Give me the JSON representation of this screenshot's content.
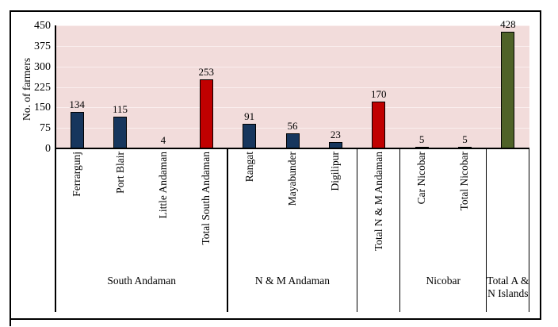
{
  "colors": {
    "navy": "#17365D",
    "red": "#C00000",
    "olive": "#4F6228",
    "plot_bg": "#F2DCDB",
    "gridline": "#FAEEEE",
    "axis": "#000000"
  },
  "chart_data": {
    "type": "bar",
    "title": "",
    "xlabel": "",
    "ylabel": "No. of farmers",
    "ylim": [
      0,
      450
    ],
    "yticks": [
      0,
      75,
      150,
      225,
      300,
      375,
      450
    ],
    "grid": "on",
    "legend": "none",
    "slots": [
      {
        "category": "Ferrargunj",
        "value": 134,
        "color_key": "navy"
      },
      {
        "category": "Port Blair",
        "value": 115,
        "color_key": "navy"
      },
      {
        "category": "Little Andaman",
        "value": 4,
        "color_key": "navy"
      },
      {
        "category": "Total South Andaman",
        "value": 253,
        "color_key": "red"
      },
      {
        "category": "Rangat",
        "value": 91,
        "color_key": "navy"
      },
      {
        "category": "Mayabunder",
        "value": 56,
        "color_key": "navy"
      },
      {
        "category": "Digilipur",
        "value": 23,
        "color_key": "navy"
      },
      {
        "category": "Total N & M Andaman",
        "value": 170,
        "color_key": "red"
      },
      {
        "category": "Car Nicobar",
        "value": 5,
        "color_key": "navy"
      },
      {
        "category": "Total Nicobar",
        "value": 5,
        "color_key": "red"
      },
      {
        "category": "",
        "value": 428,
        "color_key": "olive"
      }
    ],
    "groups": [
      {
        "label": "South Andaman",
        "span": 4
      },
      {
        "label": "N & M Andaman",
        "span": 3
      },
      {
        "label": "",
        "span": 1
      },
      {
        "label": "Nicobar",
        "span": 2
      },
      {
        "label": "Total A & N Islands",
        "span": 1
      }
    ]
  }
}
